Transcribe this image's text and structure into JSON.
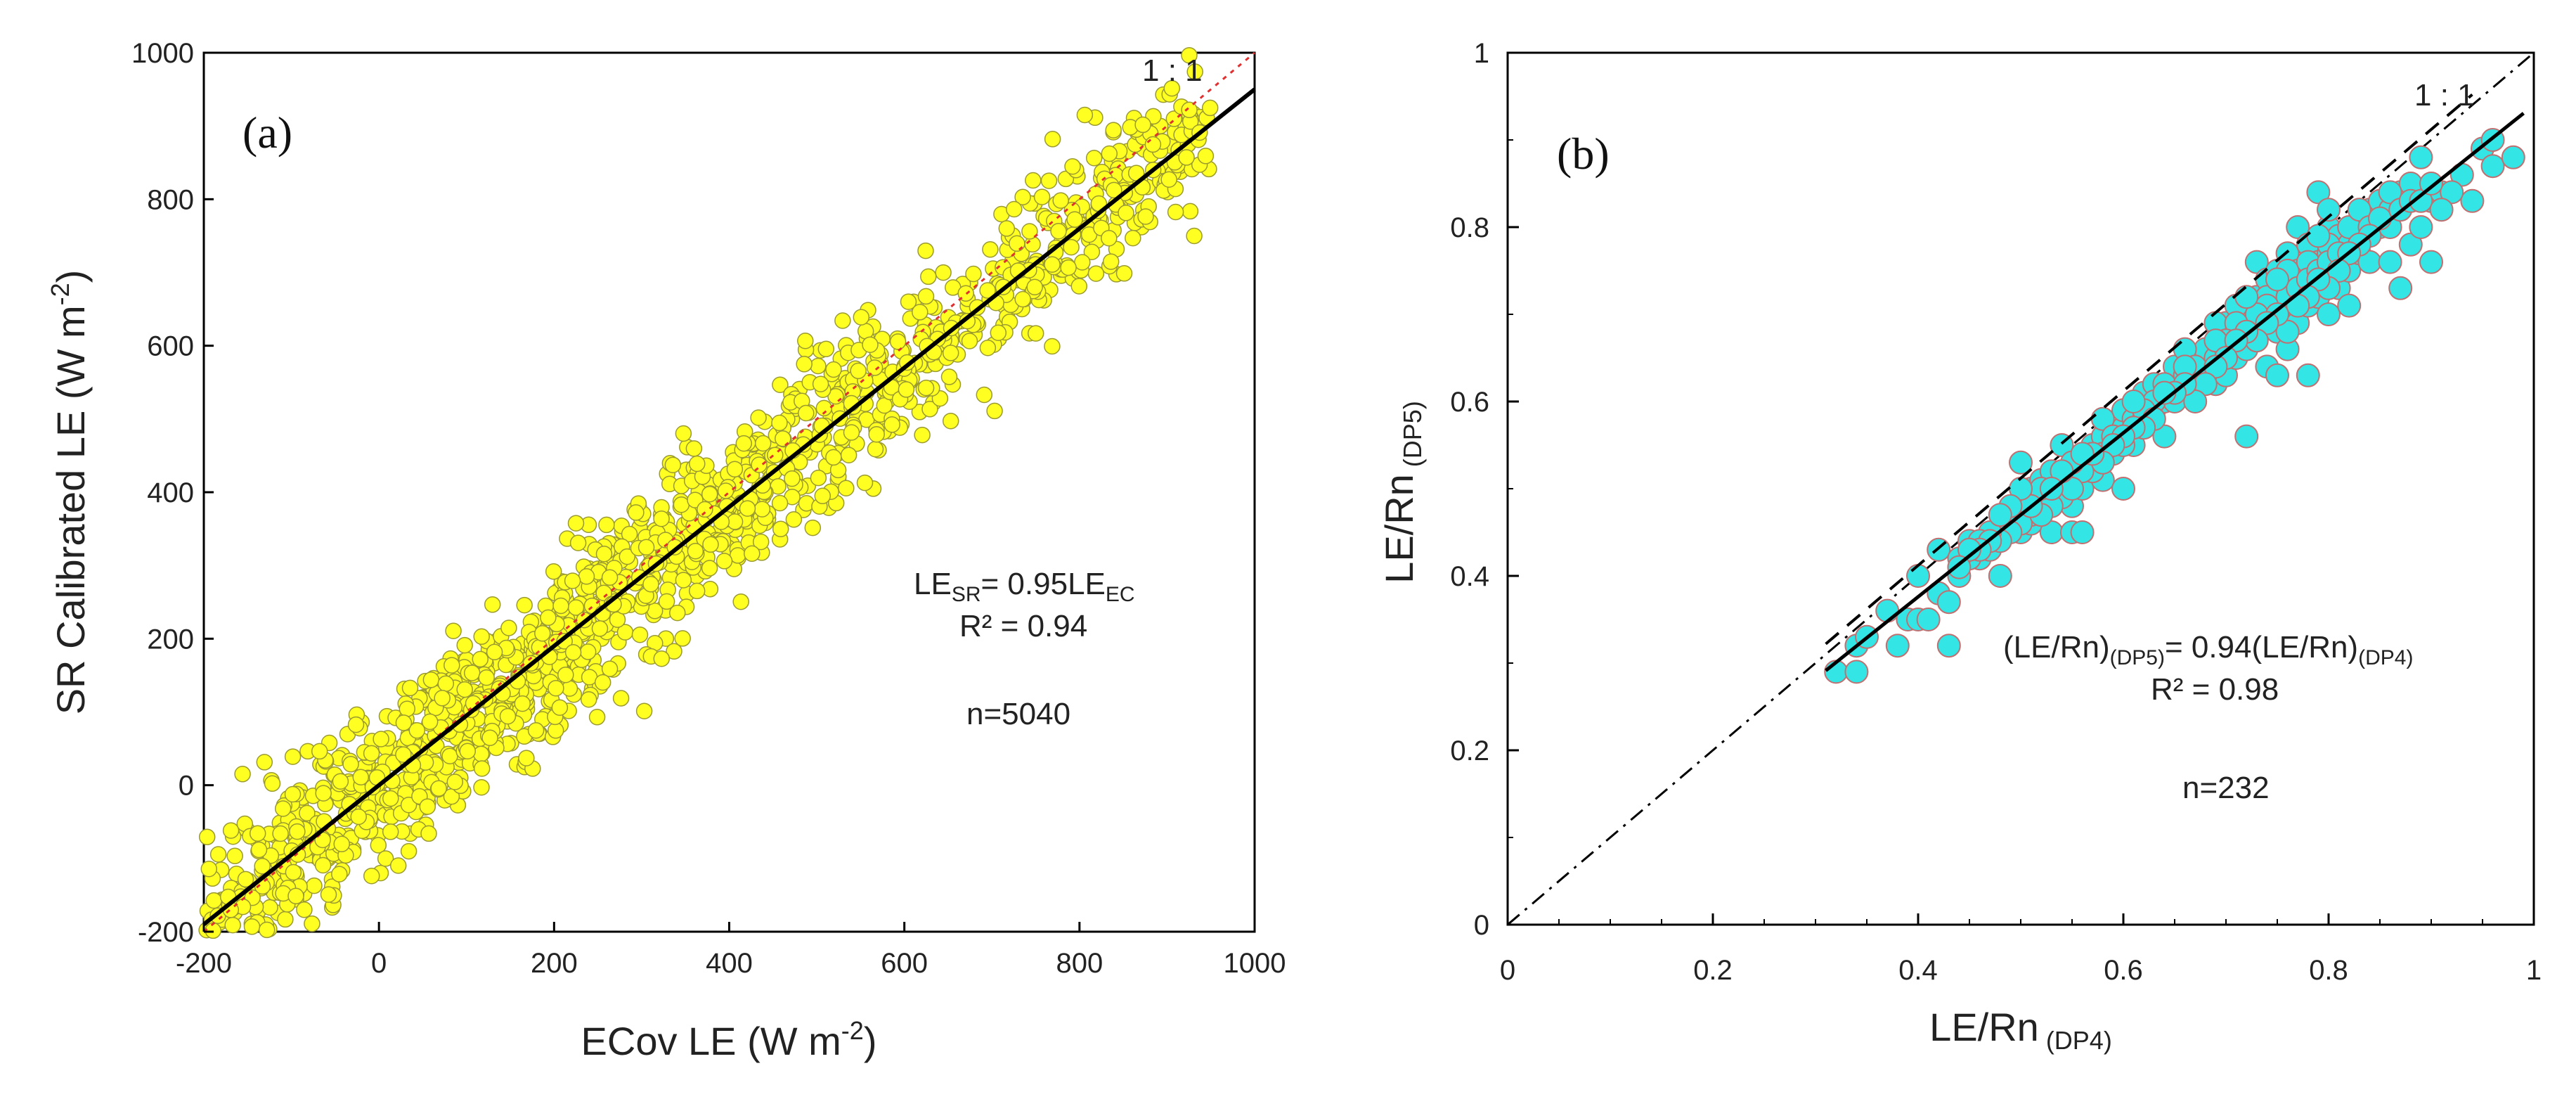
{
  "chart_data": [
    {
      "type": "scatter",
      "panel_label": "(a)",
      "xlabel": "ECov LE (W m",
      "xlabel_sup": "-2",
      "xlabel_end": ")",
      "ylabel": "SR Calibrated LE (W m",
      "ylabel_sup": "-2",
      "ylabel_end": ")",
      "xlim": [
        -200,
        1000
      ],
      "ylim": [
        -200,
        1000
      ],
      "xticks": [
        -200,
        0,
        200,
        400,
        600,
        800,
        1000
      ],
      "yticks": [
        -200,
        0,
        200,
        400,
        600,
        800,
        1000
      ],
      "xtick_labels": [
        "-200",
        "0",
        "200",
        "400",
        "600",
        "800",
        "1000"
      ],
      "ytick_labels": [
        "-200",
        "0",
        "200",
        "400",
        "600",
        "800",
        "1000"
      ],
      "marker_color": "#FFFF22",
      "marker_edge": "#9a9a30",
      "one_to_one_label": "1 : 1",
      "one_to_one_color": "#e03030",
      "fit": {
        "slope": 0.95,
        "intercept": 0,
        "color": "#000000"
      },
      "annotation": {
        "eq_prefix": "LE",
        "eq_sub1": "SR",
        "eq_mid": "= 0.95LE",
        "eq_sub2": "EC",
        "r2": "R² = 0.94",
        "n": "n=5040"
      },
      "n_points": 5040,
      "point_cloud": {
        "x_range": [
          -200,
          950
        ],
        "fit_slope": 0.95,
        "scatter_sd": 55,
        "rendered_points": 1600
      }
    },
    {
      "type": "scatter",
      "panel_label": "(b)",
      "xlabel": "LE/Rn",
      "xlabel_sub": "(DP4)",
      "ylabel": "LE/Rn",
      "ylabel_sub": "(DP5)",
      "xlim": [
        0,
        1
      ],
      "ylim": [
        0,
        1
      ],
      "xticks": [
        0,
        0.2,
        0.4,
        0.6,
        0.8,
        1
      ],
      "yticks": [
        0,
        0.2,
        0.4,
        0.6,
        0.8,
        1
      ],
      "xtick_labels": [
        "0",
        "0.2",
        "0.4",
        "0.6",
        "0.8",
        "1"
      ],
      "ytick_labels": [
        "0",
        "0.2",
        "0.4",
        "0.6",
        "0.8",
        "1"
      ],
      "marker_color": "#33E5E5",
      "marker_edge": "#c07070",
      "one_to_one_label": "1 : 1",
      "fit": {
        "slope": 0.94,
        "intercept": 0,
        "color": "#000000"
      },
      "annotation": {
        "eq1": "(LE/Rn)",
        "eq1_sub": "(DP5)",
        "eq2": "= 0.94(LE/Rn)",
        "eq2_sub": "(DP4)",
        "r2": "R² = 0.98",
        "n": "n=232"
      },
      "n_points": 232,
      "points": [
        [
          0.32,
          0.29
        ],
        [
          0.34,
          0.29
        ],
        [
          0.34,
          0.32
        ],
        [
          0.35,
          0.33
        ],
        [
          0.37,
          0.36
        ],
        [
          0.38,
          0.32
        ],
        [
          0.39,
          0.35
        ],
        [
          0.4,
          0.35
        ],
        [
          0.4,
          0.4
        ],
        [
          0.41,
          0.35
        ],
        [
          0.42,
          0.38
        ],
        [
          0.42,
          0.43
        ],
        [
          0.43,
          0.32
        ],
        [
          0.43,
          0.37
        ],
        [
          0.44,
          0.4
        ],
        [
          0.45,
          0.44
        ],
        [
          0.46,
          0.42
        ],
        [
          0.47,
          0.43
        ],
        [
          0.48,
          0.4
        ],
        [
          0.48,
          0.45
        ],
        [
          0.49,
          0.47
        ],
        [
          0.5,
          0.45
        ],
        [
          0.5,
          0.48
        ],
        [
          0.5,
          0.53
        ],
        [
          0.51,
          0.46
        ],
        [
          0.51,
          0.5
        ],
        [
          0.52,
          0.48
        ],
        [
          0.52,
          0.51
        ],
        [
          0.53,
          0.45
        ],
        [
          0.53,
          0.49
        ],
        [
          0.53,
          0.52
        ],
        [
          0.54,
          0.5
        ],
        [
          0.54,
          0.55
        ],
        [
          0.55,
          0.45
        ],
        [
          0.55,
          0.48
        ],
        [
          0.55,
          0.51
        ],
        [
          0.56,
          0.45
        ],
        [
          0.56,
          0.5
        ],
        [
          0.57,
          0.53
        ],
        [
          0.57,
          0.55
        ],
        [
          0.58,
          0.51
        ],
        [
          0.58,
          0.56
        ],
        [
          0.59,
          0.54
        ],
        [
          0.6,
          0.5
        ],
        [
          0.6,
          0.57
        ],
        [
          0.6,
          0.59
        ],
        [
          0.61,
          0.55
        ],
        [
          0.61,
          0.58
        ],
        [
          0.62,
          0.6
        ],
        [
          0.62,
          0.61
        ],
        [
          0.63,
          0.59
        ],
        [
          0.63,
          0.62
        ],
        [
          0.64,
          0.56
        ],
        [
          0.64,
          0.6
        ],
        [
          0.65,
          0.62
        ],
        [
          0.65,
          0.64
        ],
        [
          0.66,
          0.61
        ],
        [
          0.66,
          0.63
        ],
        [
          0.67,
          0.65
        ],
        [
          0.67,
          0.62
        ],
        [
          0.68,
          0.64
        ],
        [
          0.68,
          0.66
        ],
        [
          0.69,
          0.62
        ],
        [
          0.69,
          0.65
        ],
        [
          0.7,
          0.63
        ],
        [
          0.7,
          0.66
        ],
        [
          0.7,
          0.69
        ],
        [
          0.71,
          0.65
        ],
        [
          0.71,
          0.68
        ],
        [
          0.72,
          0.56
        ],
        [
          0.72,
          0.66
        ],
        [
          0.72,
          0.7
        ],
        [
          0.73,
          0.68
        ],
        [
          0.73,
          0.72
        ],
        [
          0.73,
          0.76
        ],
        [
          0.74,
          0.64
        ],
        [
          0.74,
          0.7
        ],
        [
          0.74,
          0.74
        ],
        [
          0.75,
          0.63
        ],
        [
          0.75,
          0.68
        ],
        [
          0.75,
          0.72
        ],
        [
          0.75,
          0.75
        ],
        [
          0.76,
          0.66
        ],
        [
          0.76,
          0.7
        ],
        [
          0.76,
          0.73
        ],
        [
          0.76,
          0.77
        ],
        [
          0.77,
          0.69
        ],
        [
          0.77,
          0.72
        ],
        [
          0.77,
          0.75
        ],
        [
          0.77,
          0.8
        ],
        [
          0.78,
          0.63
        ],
        [
          0.78,
          0.71
        ],
        [
          0.78,
          0.74
        ],
        [
          0.78,
          0.78
        ],
        [
          0.79,
          0.72
        ],
        [
          0.79,
          0.76
        ],
        [
          0.79,
          0.84
        ],
        [
          0.8,
          0.7
        ],
        [
          0.8,
          0.74
        ],
        [
          0.8,
          0.77
        ],
        [
          0.8,
          0.8
        ],
        [
          0.81,
          0.73
        ],
        [
          0.81,
          0.76
        ],
        [
          0.81,
          0.79
        ],
        [
          0.82,
          0.71
        ],
        [
          0.82,
          0.75
        ],
        [
          0.82,
          0.78
        ],
        [
          0.83,
          0.77
        ],
        [
          0.83,
          0.8
        ],
        [
          0.84,
          0.76
        ],
        [
          0.84,
          0.82
        ],
        [
          0.85,
          0.8
        ],
        [
          0.85,
          0.83
        ],
        [
          0.86,
          0.76
        ],
        [
          0.86,
          0.82
        ],
        [
          0.87,
          0.73
        ],
        [
          0.87,
          0.84
        ],
        [
          0.88,
          0.78
        ],
        [
          0.88,
          0.85
        ],
        [
          0.89,
          0.8
        ],
        [
          0.89,
          0.88
        ],
        [
          0.9,
          0.76
        ],
        [
          0.9,
          0.83
        ],
        [
          0.91,
          0.84
        ],
        [
          0.93,
          0.86
        ],
        [
          0.94,
          0.83
        ],
        [
          0.95,
          0.89
        ],
        [
          0.96,
          0.87
        ],
        [
          0.98,
          0.88
        ],
        [
          0.96,
          0.9
        ],
        [
          0.92,
          0.84
        ],
        [
          0.58,
          0.58
        ],
        [
          0.62,
          0.58
        ],
        [
          0.66,
          0.66
        ],
        [
          0.69,
          0.69
        ],
        [
          0.71,
          0.71
        ],
        [
          0.74,
          0.72
        ],
        [
          0.76,
          0.75
        ],
        [
          0.78,
          0.76
        ],
        [
          0.8,
          0.78
        ],
        [
          0.82,
          0.8
        ],
        [
          0.83,
          0.82
        ],
        [
          0.84,
          0.8
        ],
        [
          0.86,
          0.8
        ],
        [
          0.76,
          0.72
        ],
        [
          0.77,
          0.73
        ],
        [
          0.78,
          0.74
        ],
        [
          0.79,
          0.75
        ],
        [
          0.8,
          0.76
        ],
        [
          0.81,
          0.77
        ],
        [
          0.79,
          0.79
        ],
        [
          0.8,
          0.82
        ],
        [
          0.75,
          0.74
        ],
        [
          0.74,
          0.71
        ],
        [
          0.73,
          0.7
        ],
        [
          0.72,
          0.72
        ],
        [
          0.71,
          0.69
        ],
        [
          0.7,
          0.67
        ],
        [
          0.69,
          0.67
        ],
        [
          0.68,
          0.63
        ],
        [
          0.67,
          0.64
        ],
        [
          0.66,
          0.64
        ],
        [
          0.65,
          0.6
        ],
        [
          0.64,
          0.62
        ],
        [
          0.63,
          0.6
        ],
        [
          0.62,
          0.59
        ],
        [
          0.61,
          0.6
        ],
        [
          0.6,
          0.55
        ],
        [
          0.59,
          0.56
        ],
        [
          0.58,
          0.54
        ],
        [
          0.57,
          0.52
        ],
        [
          0.56,
          0.52
        ],
        [
          0.55,
          0.53
        ],
        [
          0.54,
          0.49
        ],
        [
          0.53,
          0.48
        ],
        [
          0.52,
          0.5
        ],
        [
          0.51,
          0.47
        ],
        [
          0.5,
          0.46
        ],
        [
          0.49,
          0.45
        ],
        [
          0.48,
          0.44
        ],
        [
          0.47,
          0.45
        ],
        [
          0.46,
          0.44
        ],
        [
          0.45,
          0.42
        ],
        [
          0.44,
          0.42
        ],
        [
          0.85,
          0.81
        ],
        [
          0.86,
          0.84
        ],
        [
          0.87,
          0.82
        ],
        [
          0.88,
          0.83
        ],
        [
          0.89,
          0.83
        ],
        [
          0.9,
          0.85
        ],
        [
          0.91,
          0.82
        ],
        [
          0.84,
          0.79
        ],
        [
          0.83,
          0.78
        ],
        [
          0.82,
          0.77
        ],
        [
          0.81,
          0.75
        ],
        [
          0.8,
          0.73
        ],
        [
          0.79,
          0.74
        ],
        [
          0.78,
          0.72
        ],
        [
          0.77,
          0.71
        ],
        [
          0.76,
          0.68
        ],
        [
          0.75,
          0.7
        ],
        [
          0.74,
          0.69
        ],
        [
          0.73,
          0.67
        ],
        [
          0.72,
          0.68
        ],
        [
          0.71,
          0.67
        ],
        [
          0.7,
          0.65
        ],
        [
          0.69,
          0.64
        ],
        [
          0.68,
          0.62
        ],
        [
          0.67,
          0.6
        ],
        [
          0.66,
          0.62
        ],
        [
          0.65,
          0.61
        ],
        [
          0.64,
          0.61
        ],
        [
          0.63,
          0.58
        ],
        [
          0.62,
          0.57
        ],
        [
          0.61,
          0.57
        ],
        [
          0.6,
          0.56
        ],
        [
          0.59,
          0.55
        ],
        [
          0.58,
          0.53
        ],
        [
          0.57,
          0.54
        ],
        [
          0.56,
          0.54
        ],
        [
          0.55,
          0.5
        ],
        [
          0.54,
          0.52
        ],
        [
          0.53,
          0.5
        ],
        [
          0.52,
          0.47
        ],
        [
          0.51,
          0.48
        ],
        [
          0.5,
          0.5
        ],
        [
          0.49,
          0.48
        ],
        [
          0.48,
          0.47
        ],
        [
          0.47,
          0.44
        ],
        [
          0.46,
          0.43
        ],
        [
          0.45,
          0.43
        ],
        [
          0.44,
          0.41
        ]
      ]
    }
  ]
}
